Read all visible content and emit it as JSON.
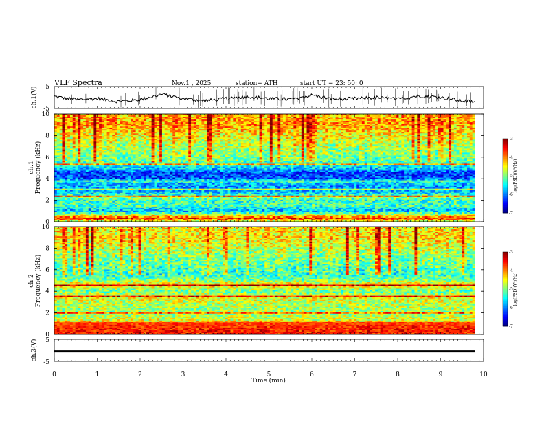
{
  "header": {
    "title": "VLF  Spectra",
    "date": "Nov.1  , 2025",
    "station": "station= ATH",
    "start_ut": "start  UT  =    23: 50: 0"
  },
  "chart_data": [
    {
      "type": "line",
      "name": "ch1-waveform",
      "ylabel": "ch.1(V)",
      "ylim": [
        -5,
        5
      ],
      "yticks": [
        "5",
        "-5"
      ],
      "xlim": [
        0,
        10
      ],
      "description_values": {
        "baseline_min_start": 0,
        "baseline_value_start": 0.5,
        "trend": [
          [
            0,
            0.5
          ],
          [
            0.5,
            -1
          ],
          [
            1,
            -0.5
          ],
          [
            1.5,
            -1.8
          ],
          [
            2,
            -1
          ],
          [
            2.5,
            1.5
          ],
          [
            3,
            -0.5
          ],
          [
            3.5,
            -1.5
          ],
          [
            4,
            -0.5
          ],
          [
            4.5,
            0.5
          ],
          [
            5,
            -0.5
          ],
          [
            5.5,
            -0.8
          ],
          [
            6,
            1
          ],
          [
            6.5,
            -0.8
          ],
          [
            7,
            -0.5
          ],
          [
            7.5,
            0
          ],
          [
            8,
            -0.8
          ],
          [
            8.5,
            0.8
          ],
          [
            9,
            0
          ],
          [
            9.5,
            -1.5
          ],
          [
            9.8,
            -2
          ]
        ]
      }
    },
    {
      "type": "heatmap",
      "name": "ch1-spectrogram",
      "ylabel": "Frequency  (kHz)",
      "channel_label": "ch.1",
      "ylim": [
        0,
        10
      ],
      "yticks": [
        "0",
        "2",
        "4",
        "6",
        "8",
        "10"
      ],
      "xlim": [
        0,
        10
      ],
      "colorbar": {
        "label": "log(PSD)(V²/Hz)",
        "range": [
          -7,
          -3
        ],
        "ticks": [
          "-3",
          "-4",
          "-5",
          "-6",
          "-7"
        ]
      },
      "band_profile": [
        [
          0,
          -4.8
        ],
        [
          0.3,
          -3.6
        ],
        [
          0.6,
          -4.5
        ],
        [
          1,
          -5.8
        ],
        [
          1.5,
          -5.2
        ],
        [
          2,
          -5.3
        ],
        [
          2.3,
          -4.9
        ],
        [
          2.6,
          -5.5
        ],
        [
          3,
          -5.9
        ],
        [
          3.5,
          -5.8
        ],
        [
          3.8,
          -5.2
        ],
        [
          4,
          -6.2
        ],
        [
          4.5,
          -6.3
        ],
        [
          5,
          -5.6
        ],
        [
          5.5,
          -5.2
        ],
        [
          6,
          -5.0
        ],
        [
          7,
          -4.8
        ],
        [
          8,
          -4.5
        ],
        [
          9,
          -4.1
        ],
        [
          10,
          -4.2
        ]
      ]
    },
    {
      "type": "heatmap",
      "name": "ch2-spectrogram",
      "ylabel": "Frequency  (kHz)",
      "channel_label": "ch.2",
      "ylim": [
        0,
        10
      ],
      "yticks": [
        "0",
        "2",
        "4",
        "6",
        "8",
        "10"
      ],
      "xlim": [
        0,
        10
      ],
      "colorbar": {
        "label": "log(PSD)(V²/Hz)",
        "range": [
          -7,
          -3
        ],
        "ticks": [
          "-3",
          "-4",
          "-5",
          "-6",
          "-7"
        ]
      },
      "band_profile": [
        [
          0,
          -3.6
        ],
        [
          0.5,
          -3.7
        ],
        [
          0.9,
          -3.9
        ],
        [
          1.3,
          -4.6
        ],
        [
          2,
          -4.9
        ],
        [
          3,
          -4.7
        ],
        [
          3.5,
          -4.5
        ],
        [
          4,
          -5.1
        ],
        [
          4.6,
          -4.2
        ],
        [
          5,
          -5.0
        ],
        [
          5.5,
          -5.3
        ],
        [
          6,
          -5.2
        ],
        [
          7,
          -5.0
        ],
        [
          8,
          -4.7
        ],
        [
          9,
          -4.4
        ],
        [
          10,
          -4.5
        ]
      ]
    },
    {
      "type": "line",
      "name": "ch3-waveform",
      "ylabel": "ch.3(V)",
      "ylim": [
        -5,
        5
      ],
      "yticks": [
        "5",
        "-5"
      ],
      "xlim": [
        0,
        10
      ],
      "description_values": {
        "constant_value": -0.5
      }
    }
  ],
  "xaxis": {
    "label": "Time  (min)",
    "ticks": [
      "0",
      "1",
      "2",
      "3",
      "4",
      "5",
      "6",
      "7",
      "8",
      "9",
      "10"
    ],
    "data_end_min": 9.8
  }
}
